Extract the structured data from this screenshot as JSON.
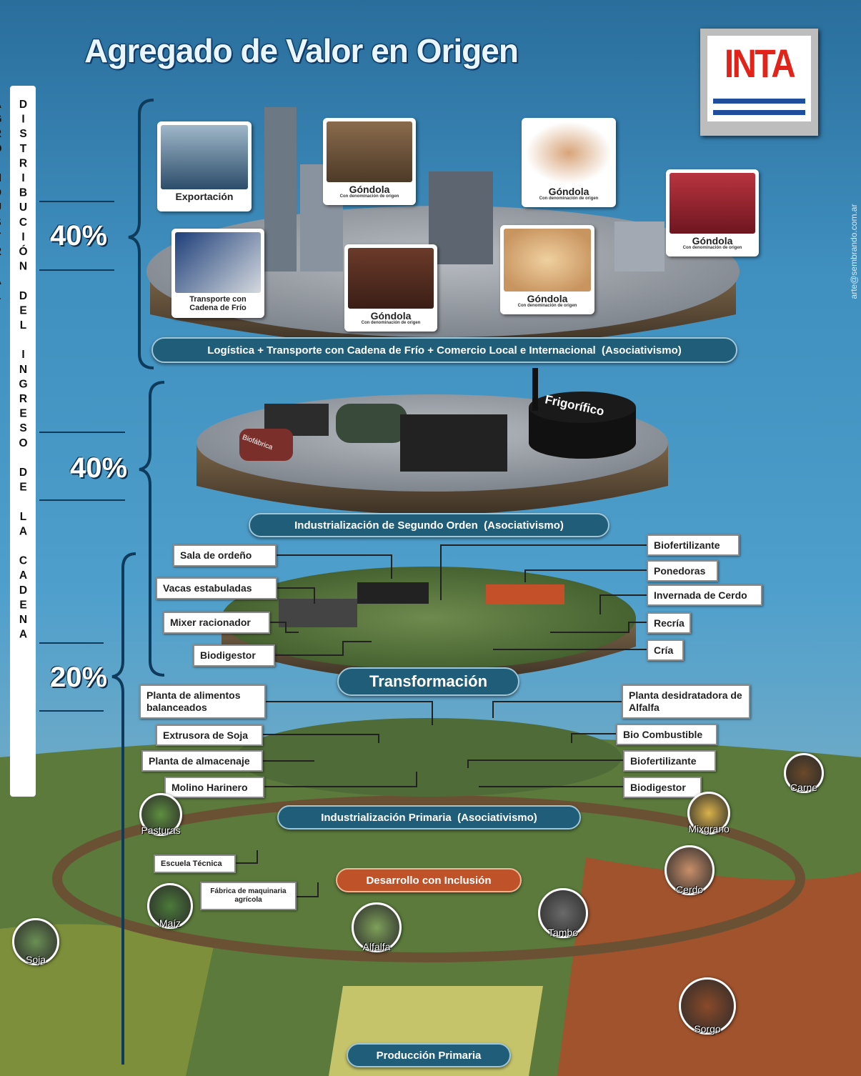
{
  "header": {
    "title": "Agregado de Valor en Origen",
    "logo": "INTA",
    "credit": "arte@sembrando.com.ar"
  },
  "side": {
    "label": "DISTRIBUCIÓN DEL INGRESO DE LA CADENA AGROINDUSTRIAL",
    "shares": [
      "40%",
      "40%",
      "20%"
    ]
  },
  "distribution": {
    "cards": [
      {
        "label": "Exportación"
      },
      {
        "label": "Góndola",
        "note": "Con denominación de origen"
      },
      {
        "label": "Góndola",
        "note": "Con denominación de origen"
      },
      {
        "label": "Góndola",
        "note": "Con denominación de origen"
      },
      {
        "label": "Transporte con Cadena de Frío"
      },
      {
        "label": "Góndola",
        "note": "Con denominación de origen"
      },
      {
        "label": "Góndola",
        "note": "Con denominación de origen"
      }
    ],
    "banner": "Logística + Transporte con Cadena de Frío + Comercio Local e Internacional  (Asociativismo)"
  },
  "second_order": {
    "buildings": [
      "Frigorífico",
      "Biofábrica"
    ],
    "banner": "Industrialización de Segundo Orden  (Asociativismo)"
  },
  "transformation": {
    "left": [
      "Sala de ordeño",
      "Vacas estabuladas",
      "Mixer racionador",
      "Biodigestor"
    ],
    "right": [
      "Biofertilizante",
      "Ponedoras",
      "Invernada de Cerdo",
      "Recría",
      "Cría"
    ],
    "banner": "Transformación"
  },
  "primary_industry": {
    "left": [
      "Planta de alimentos balanceados",
      "Extrusora de Soja",
      "Planta de almacenaje",
      "Molino Harinero"
    ],
    "right": [
      "Planta desidratadora de Alfalfa",
      "Bio Combustible",
      "Biofertilizante",
      "Biodigestor"
    ],
    "banner": "Industrialización Primaria  (Asociativismo)"
  },
  "production": {
    "crops": [
      "Pasturas",
      "Maíz",
      "Soja",
      "Alfalfa",
      "Tambo",
      "Cerdo",
      "Carne",
      "Mixgrano",
      "Sorgo"
    ],
    "labels": [
      "Escuela Técnica",
      "Fábrica de maquinaria agrícola"
    ],
    "inclusion": "Desarrollo con Inclusión",
    "banner": "Producción Primaria"
  }
}
